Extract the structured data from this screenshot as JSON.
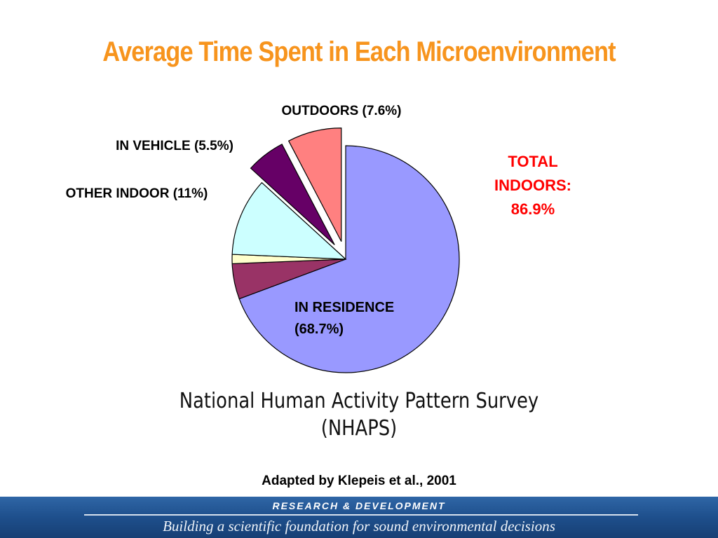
{
  "slide": {
    "title": "Average Time Spent in Each Microenvironment"
  },
  "chart_data": {
    "type": "pie",
    "slices": [
      {
        "label": "IN RESIDENCE (68.7%)",
        "value": 68.7,
        "color": "#9999ff",
        "exploded": false
      },
      {
        "label": "",
        "value": 5.0,
        "color": "#993366",
        "exploded": false
      },
      {
        "label": "",
        "value": 1.3,
        "color": "#ffffcc",
        "exploded": false
      },
      {
        "label": "OTHER INDOOR (11%)",
        "value": 11.0,
        "color": "#ccffff",
        "exploded": false
      },
      {
        "label": "IN VEHICLE (5.5%)",
        "value": 5.5,
        "color": "#660066",
        "exploded": true
      },
      {
        "label": "OUTDOORS (7.6%)",
        "value": 7.6,
        "color": "#ff8080",
        "exploded": true
      }
    ],
    "labels": {
      "outdoors": "OUTDOORS (7.6%)",
      "in_vehicle": "IN VEHICLE (5.5%)",
      "other_indoor": "OTHER INDOOR (11%)",
      "in_residence_line1": "IN RESIDENCE",
      "in_residence_line2": "(68.7%)"
    },
    "annotation": {
      "line1": "TOTAL",
      "line2": "INDOORS:",
      "line3": "86.9%",
      "color": "#ff0000"
    }
  },
  "caption": {
    "line1": "National Human Activity Pattern Survey",
    "line2": "(NHAPS)"
  },
  "citation": "Adapted by Klepeis et al., 2001",
  "footer": {
    "top": "RESEARCH &  DEVELOPMENT",
    "bottom": "Building a scientific foundation for sound environmental decisions"
  }
}
